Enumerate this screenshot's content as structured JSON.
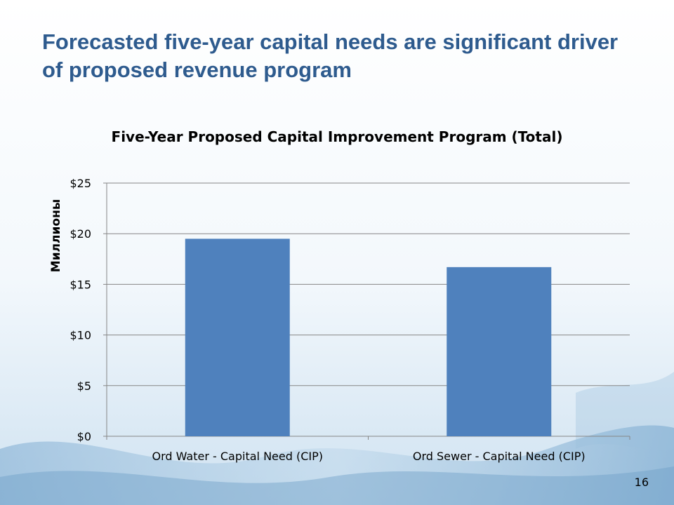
{
  "slide": {
    "title": "Forecasted five-year capital needs are significant driver of proposed revenue program",
    "number": "16",
    "colors": {
      "title": "#2e5b8e",
      "bar": "#4f81bd",
      "grid": "#868686"
    }
  },
  "chart_data": {
    "type": "bar",
    "title": "Five-Year Proposed Capital Improvement Program (Total)",
    "xlabel": "",
    "ylabel": "Миллионы",
    "categories": [
      "Ord Water - Capital Need (CIP)",
      "Ord Sewer - Capital Need (CIP)"
    ],
    "values": [
      19.5,
      16.7
    ],
    "ylim": [
      0,
      25
    ],
    "yticks": [
      0,
      5,
      10,
      15,
      20,
      25
    ],
    "ytick_labels": [
      "$0",
      "$5",
      "$10",
      "$15",
      "$20",
      "$25"
    ],
    "grid": true,
    "legend": "none"
  }
}
